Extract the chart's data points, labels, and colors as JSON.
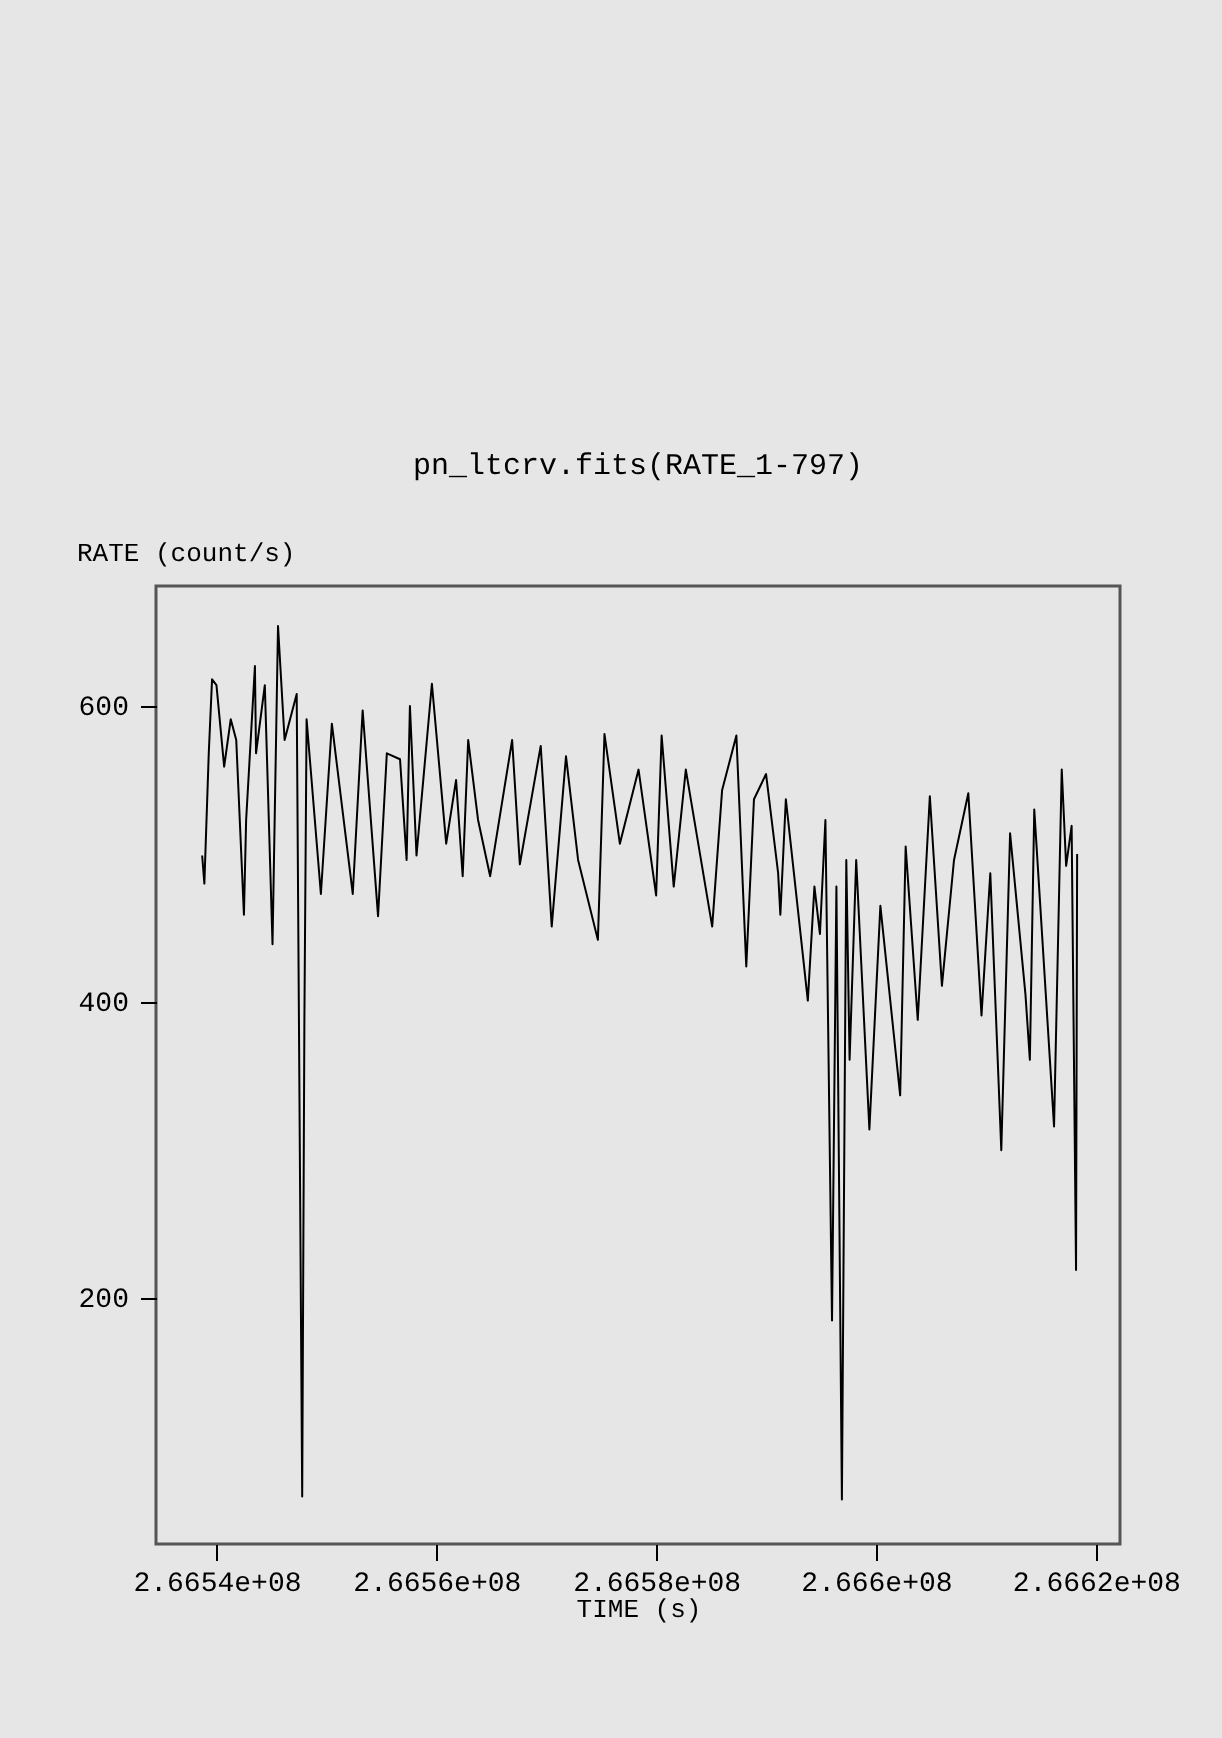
{
  "chart_data": {
    "type": "line",
    "title": "pn_ltcrv.fits(RATE_1-797)",
    "xlabel": "TIME (s)",
    "ylabel": "RATE (count/s)",
    "xlim": [
      266534500,
      266622200
    ],
    "xticks": [
      {
        "value": 266540000,
        "label": "2.6654e+08"
      },
      {
        "value": 266560000,
        "label": "2.6656e+08"
      },
      {
        "value": 266580000,
        "label": "2.6658e+08"
      },
      {
        "value": 266600000,
        "label": "2.666e+08"
      },
      {
        "value": 266620000,
        "label": "2.6662e+08"
      }
    ],
    "ylim": [
      34,
      681
    ],
    "yticks": [
      200,
      400,
      600
    ],
    "grid": false,
    "marker": "none",
    "line_style": "solid",
    "x": [
      266538700,
      266538900,
      266539300,
      266539600,
      266540000,
      266540700,
      266541300,
      266541800,
      266542500,
      266542700,
      266543500,
      266543600,
      266544400,
      266545100,
      266545600,
      266546200,
      266547300,
      266547800,
      266548000,
      266548200,
      266549500,
      266550500,
      266552400,
      266553300,
      266554700,
      266555500,
      266556700,
      266557300,
      266557600,
      266558200,
      266559600,
      266560900,
      266561800,
      266562400,
      266562900,
      266563800,
      266564900,
      266566900,
      266567600,
      266569500,
      266570500,
      266571800,
      266572900,
      266574700,
      266575300,
      266576700,
      266578400,
      266580000,
      266580500,
      266581600,
      266582700,
      266585100,
      266586000,
      266587300,
      266588200,
      266588900,
      266590000,
      266591100,
      266591300,
      266591800,
      266593800,
      266594400,
      266594900,
      266595400,
      266596000,
      266596400,
      266596900,
      266597300,
      266597600,
      266598200,
      266599400,
      266600400,
      266602200,
      266602700,
      266603800,
      266604900,
      266606000,
      266607100,
      266608400,
      266609600,
      266610400,
      266611400,
      266612200,
      266613600,
      266614000,
      266614400,
      266616200,
      266616900,
      266617300,
      266617800,
      266618200,
      266618300
    ],
    "series": [
      {
        "color": "#000000",
        "values": [
          499,
          480,
          568,
          618,
          614,
          559,
          591,
          577,
          459,
          523,
          627,
          568,
          614,
          439,
          654,
          577,
          608,
          66,
          388,
          591,
          473,
          588,
          473,
          597,
          458,
          568,
          564,
          496,
          600,
          499,
          615,
          507,
          550,
          485,
          577,
          523,
          485,
          577,
          493,
          573,
          451,
          566,
          496,
          442,
          581,
          507,
          557,
          472,
          580,
          478,
          557,
          451,
          543,
          580,
          424,
          537,
          554,
          487,
          459,
          537,
          401,
          478,
          446,
          523,
          185,
          478,
          64,
          496,
          361,
          496,
          314,
          465,
          337,
          505,
          388,
          539,
          411,
          496,
          541,
          391,
          487,
          300,
          514,
          405,
          361,
          530,
          316,
          557,
          492,
          519,
          219,
          500
        ]
      }
    ]
  }
}
